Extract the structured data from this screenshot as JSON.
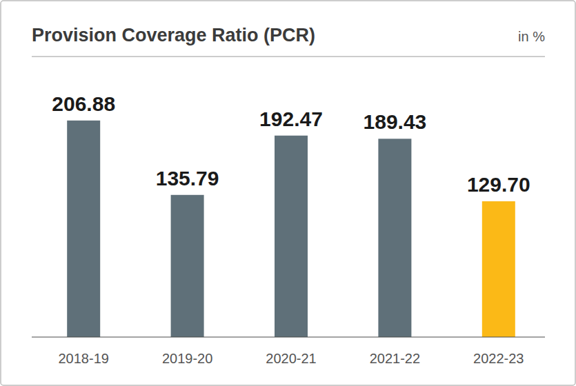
{
  "chart_data": {
    "type": "bar",
    "title": "Provision Coverage Ratio (PCR)",
    "y_label": "in %",
    "categories": [
      "2018-19",
      "2019-20",
      "2020-21",
      "2021-22",
      "2022-23"
    ],
    "values": [
      206.88,
      135.79,
      192.47,
      189.43,
      129.7
    ],
    "value_labels": [
      "206.88",
      "135.79",
      "192.47",
      "189.43",
      "129.70"
    ],
    "colors": [
      "#5f7079",
      "#5f7079",
      "#5f7079",
      "#5f7079",
      "#fbb917"
    ],
    "ylim": [
      0,
      268
    ],
    "data_labels": true,
    "tick_labels": "x",
    "grid": false
  }
}
